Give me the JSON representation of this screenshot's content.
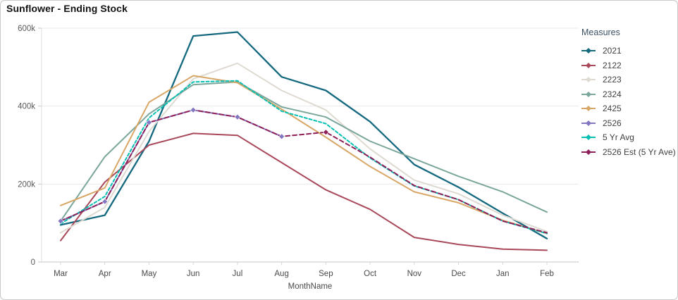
{
  "title": "Sunflower - Ending Stock",
  "legend": {
    "title": "Measures",
    "items": [
      {
        "label": "2021",
        "color": "#15697F"
      },
      {
        "label": "2122",
        "color": "#A9485A"
      },
      {
        "label": "2223",
        "color": "#DEDAD1"
      },
      {
        "label": "2324",
        "color": "#7BA69B"
      },
      {
        "label": "2425",
        "color": "#D8A768"
      },
      {
        "label": "2526",
        "color": "#8377C2"
      },
      {
        "label": "5 Yr Avg",
        "color": "#05BFB2"
      },
      {
        "label": "2526 Est (5 Yr Ave)",
        "color": "#8E2059"
      }
    ]
  },
  "chart_data": {
    "type": "line",
    "title": "Sunflower - Ending Stock",
    "xlabel": "MonthName",
    "ylabel": "",
    "x": [
      "Mar",
      "Apr",
      "May",
      "Jun",
      "Jul",
      "Aug",
      "Sep",
      "Oct",
      "Nov",
      "Dec",
      "Jan",
      "Feb"
    ],
    "ylim_k": [
      0,
      600
    ],
    "ytick_values_k": [
      0,
      200,
      400,
      600
    ],
    "ytick_labels": [
      "0",
      "200k",
      "400k",
      "600k"
    ],
    "values_unit": "thousands",
    "grid": true,
    "legend_position": "right",
    "series": [
      {
        "name": "2021",
        "color": "#15697F",
        "style": "solid",
        "width": 2.3,
        "values_k": [
          95,
          120,
          310,
          580,
          590,
          475,
          440,
          360,
          250,
          192,
          125,
          60
        ]
      },
      {
        "name": "2122",
        "color": "#A9485A",
        "style": "solid",
        "width": 2,
        "values_k": [
          55,
          205,
          300,
          330,
          325,
          255,
          185,
          135,
          63,
          45,
          33,
          30
        ]
      },
      {
        "name": "2223",
        "color": "#DEDAD1",
        "style": "solid",
        "width": 2,
        "values_k": [
          75,
          140,
          335,
          470,
          510,
          440,
          390,
          290,
          210,
          175,
          120,
          78
        ]
      },
      {
        "name": "2324",
        "color": "#7BA69B",
        "style": "solid",
        "width": 2,
        "values_k": [
          105,
          270,
          380,
          455,
          462,
          398,
          372,
          310,
          265,
          220,
          180,
          128
        ]
      },
      {
        "name": "2425",
        "color": "#D8A768",
        "style": "solid",
        "width": 2,
        "values_k": [
          145,
          190,
          410,
          478,
          460,
          392,
          320,
          245,
          180,
          152,
          107,
          73
        ]
      },
      {
        "name": "2526",
        "color": "#8377C2",
        "style": "solid",
        "width": 2,
        "marker": "diamond",
        "marker_indices": "all",
        "values_k": [
          105,
          155,
          358,
          390,
          372,
          322,
          null,
          null,
          null,
          null,
          null,
          null
        ]
      },
      {
        "name": "5 Yr Avg",
        "color": "#05BFB2",
        "style": "dashed",
        "dash": "4 3",
        "width": 2,
        "values_k": [
          98,
          168,
          370,
          462,
          465,
          387,
          355,
          267,
          195,
          160,
          105,
          73
        ]
      },
      {
        "name": "2526 Est (5 Yr Ave)",
        "color": "#8E2059",
        "style": "dashed",
        "dash": "6 4",
        "width": 2,
        "marker": "diamond",
        "marker_indices": [
          6
        ],
        "values_k": [
          105,
          155,
          358,
          390,
          372,
          322,
          333,
          269,
          196,
          160,
          105,
          75
        ]
      }
    ]
  }
}
